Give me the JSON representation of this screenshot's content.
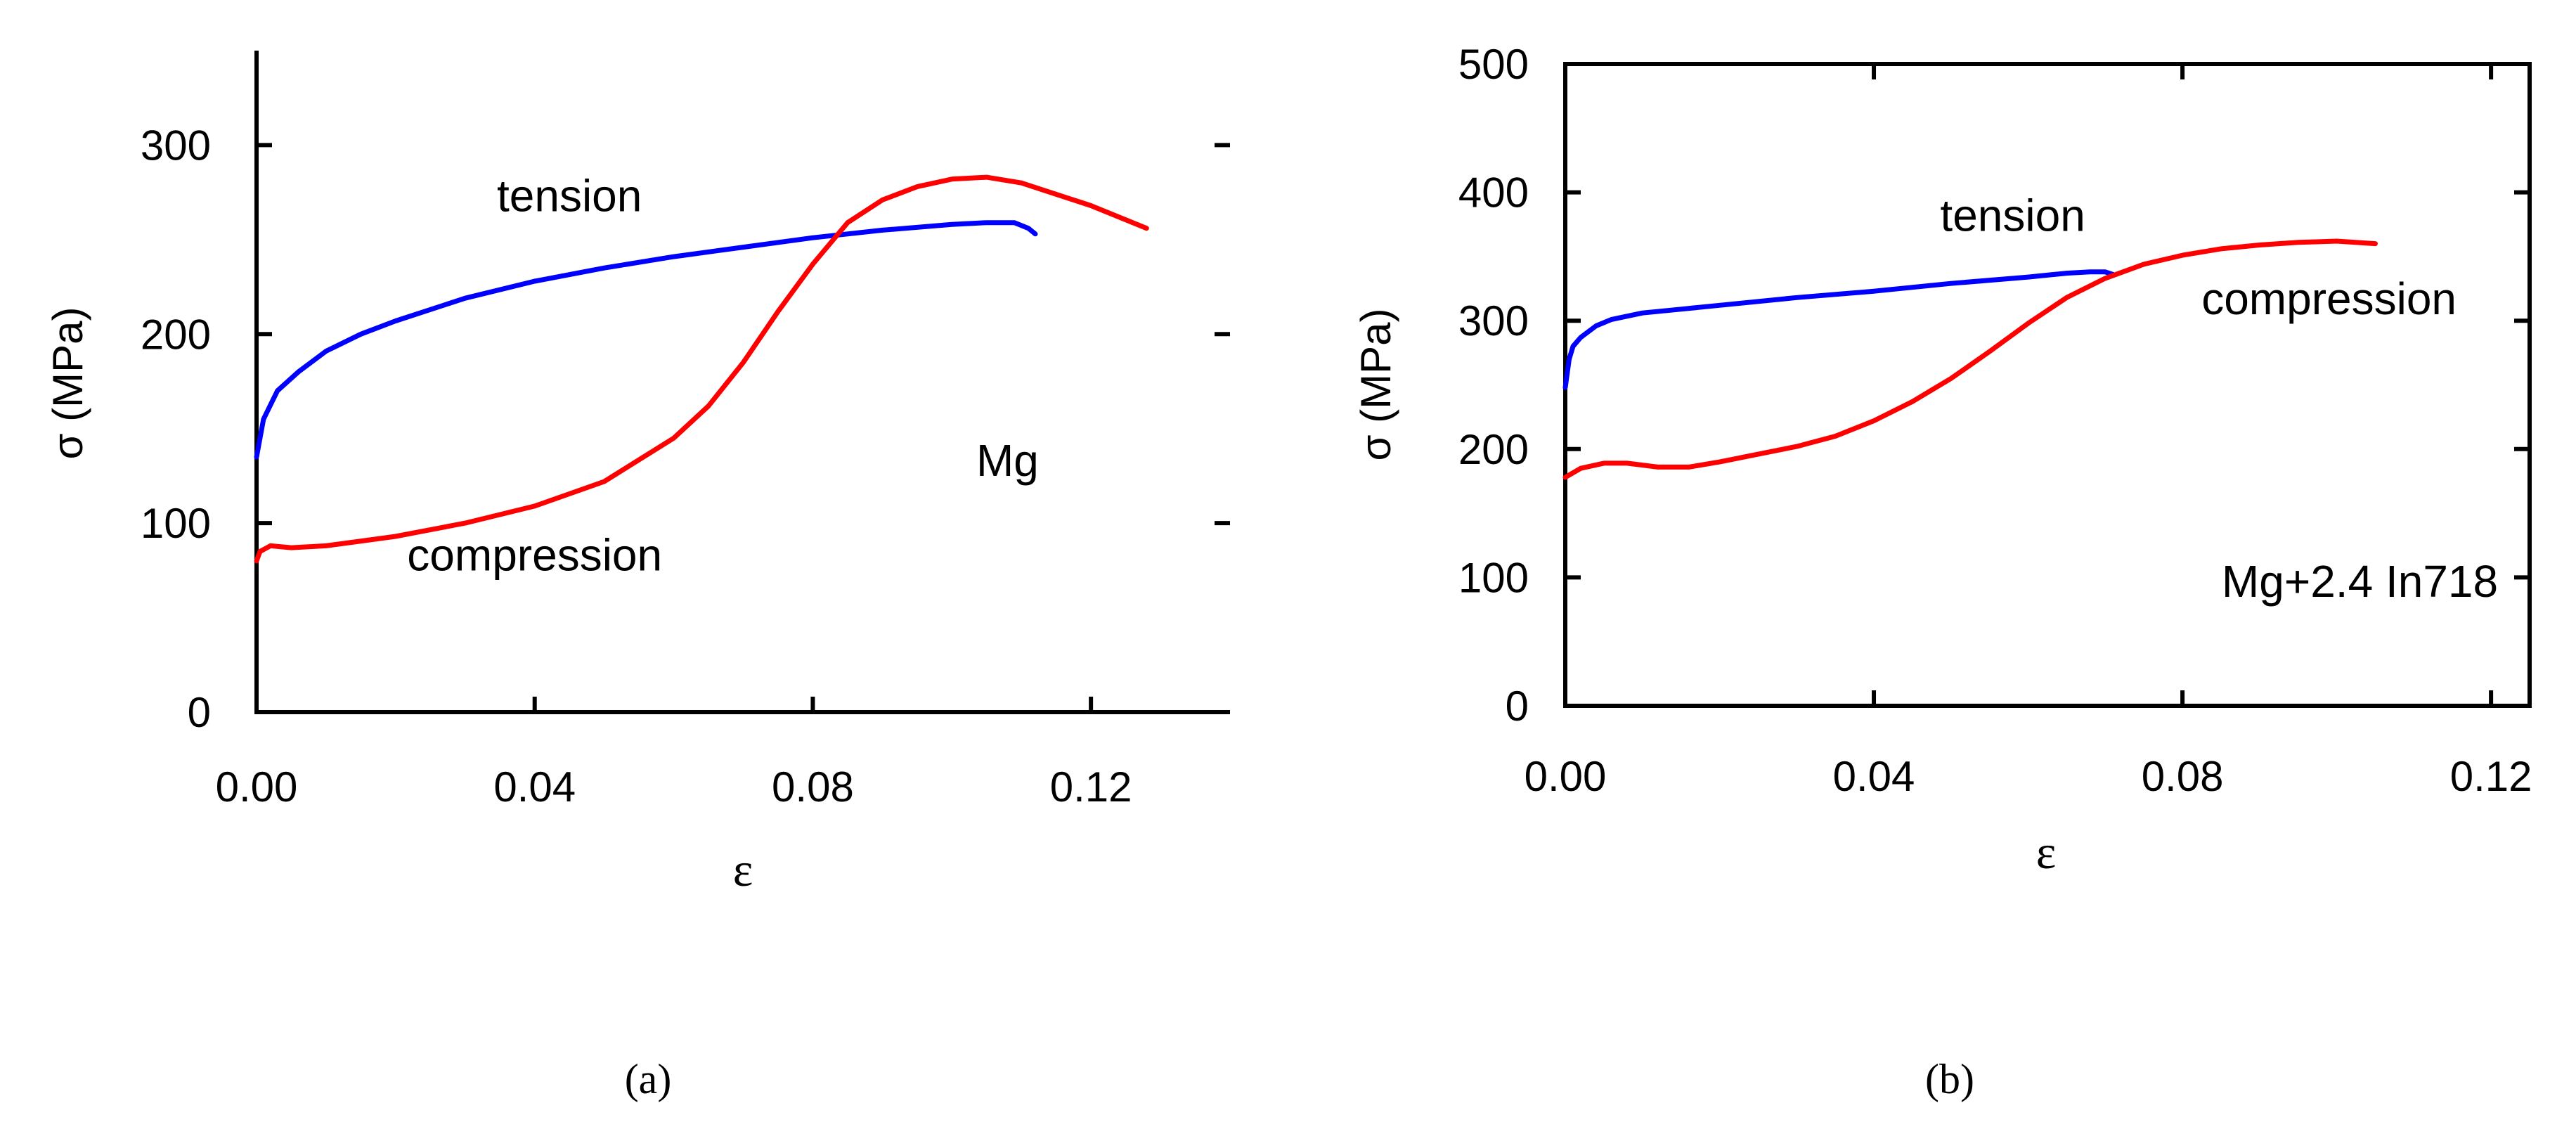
{
  "chart_data": [
    {
      "type": "line",
      "panel": "(a)",
      "xlabel": "ε",
      "ylabel": "σ (MPa)",
      "xlim": [
        0,
        0.14
      ],
      "ylim": [
        0,
        350
      ],
      "xticks": [
        0.0,
        0.04,
        0.08,
        0.12
      ],
      "xtick_labels": [
        "0.00",
        "0.04",
        "0.08",
        "0.12"
      ],
      "yticks": [
        0,
        100,
        200,
        300
      ],
      "ytick_labels": [
        "0",
        "100",
        "200",
        "300"
      ],
      "annotations": [
        {
          "text": "tension",
          "x": 0.045,
          "y": 265
        },
        {
          "text": "compression",
          "x": 0.04,
          "y": 75
        },
        {
          "text": "Mg",
          "x": 0.108,
          "y": 125
        }
      ],
      "series": [
        {
          "name": "tension",
          "color": "#0000ff",
          "points": [
            [
              0.0,
              135
            ],
            [
              0.001,
              155
            ],
            [
              0.003,
              170
            ],
            [
              0.006,
              180
            ],
            [
              0.01,
              191
            ],
            [
              0.015,
              200
            ],
            [
              0.02,
              207
            ],
            [
              0.03,
              219
            ],
            [
              0.04,
              228
            ],
            [
              0.05,
              235
            ],
            [
              0.06,
              241
            ],
            [
              0.07,
              246
            ],
            [
              0.08,
              251
            ],
            [
              0.09,
              255
            ],
            [
              0.1,
              258
            ],
            [
              0.105,
              259
            ],
            [
              0.109,
              259
            ],
            [
              0.111,
              256
            ],
            [
              0.112,
              253
            ]
          ]
        },
        {
          "name": "compression",
          "color": "#ff0000",
          "points": [
            [
              0.0,
              80
            ],
            [
              0.0005,
              85
            ],
            [
              0.002,
              88
            ],
            [
              0.005,
              87
            ],
            [
              0.01,
              88
            ],
            [
              0.02,
              93
            ],
            [
              0.03,
              100
            ],
            [
              0.04,
              109
            ],
            [
              0.05,
              122
            ],
            [
              0.06,
              145
            ],
            [
              0.065,
              162
            ],
            [
              0.07,
              185
            ],
            [
              0.075,
              212
            ],
            [
              0.08,
              237
            ],
            [
              0.085,
              259
            ],
            [
              0.09,
              271
            ],
            [
              0.095,
              278
            ],
            [
              0.1,
              282
            ],
            [
              0.105,
              283
            ],
            [
              0.11,
              280
            ],
            [
              0.12,
              268
            ],
            [
              0.128,
              256
            ]
          ]
        }
      ]
    },
    {
      "type": "line",
      "panel": "(b)",
      "xlabel": "ε",
      "ylabel": "σ (MPa)",
      "xlim": [
        0,
        0.125
      ],
      "ylim": [
        0,
        500
      ],
      "xticks": [
        0.0,
        0.04,
        0.08,
        0.12
      ],
      "xtick_labels": [
        "0.00",
        "0.04",
        "0.08",
        "0.12"
      ],
      "yticks": [
        0,
        100,
        200,
        300,
        400,
        500
      ],
      "ytick_labels": [
        "0",
        "100",
        "200",
        "300",
        "400",
        "500"
      ],
      "annotations": [
        {
          "text": "tension",
          "x": 0.058,
          "y": 370
        },
        {
          "text": "compression",
          "x": 0.099,
          "y": 305
        },
        {
          "text": "Mg+2.4 In718",
          "x": 0.103,
          "y": 85
        }
      ],
      "series": [
        {
          "name": "tension",
          "color": "#0000ff",
          "points": [
            [
              0.0,
              248
            ],
            [
              0.0005,
              270
            ],
            [
              0.001,
              280
            ],
            [
              0.002,
              287
            ],
            [
              0.004,
              296
            ],
            [
              0.006,
              301
            ],
            [
              0.01,
              306
            ],
            [
              0.015,
              309
            ],
            [
              0.02,
              312
            ],
            [
              0.03,
              318
            ],
            [
              0.04,
              323
            ],
            [
              0.05,
              329
            ],
            [
              0.06,
              334
            ],
            [
              0.065,
              337
            ],
            [
              0.068,
              338
            ],
            [
              0.07,
              338
            ],
            [
              0.071,
              336
            ]
          ]
        },
        {
          "name": "compression",
          "color": "#ff0000",
          "points": [
            [
              0.0,
              178
            ],
            [
              0.002,
              185
            ],
            [
              0.005,
              189
            ],
            [
              0.008,
              189
            ],
            [
              0.012,
              186
            ],
            [
              0.016,
              186
            ],
            [
              0.02,
              190
            ],
            [
              0.025,
              196
            ],
            [
              0.03,
              202
            ],
            [
              0.035,
              210
            ],
            [
              0.04,
              222
            ],
            [
              0.045,
              237
            ],
            [
              0.05,
              255
            ],
            [
              0.055,
              276
            ],
            [
              0.06,
              298
            ],
            [
              0.065,
              318
            ],
            [
              0.07,
              333
            ],
            [
              0.075,
              344
            ],
            [
              0.08,
              351
            ],
            [
              0.085,
              356
            ],
            [
              0.09,
              359
            ],
            [
              0.095,
              361
            ],
            [
              0.1,
              362
            ],
            [
              0.105,
              360
            ]
          ]
        }
      ]
    }
  ]
}
